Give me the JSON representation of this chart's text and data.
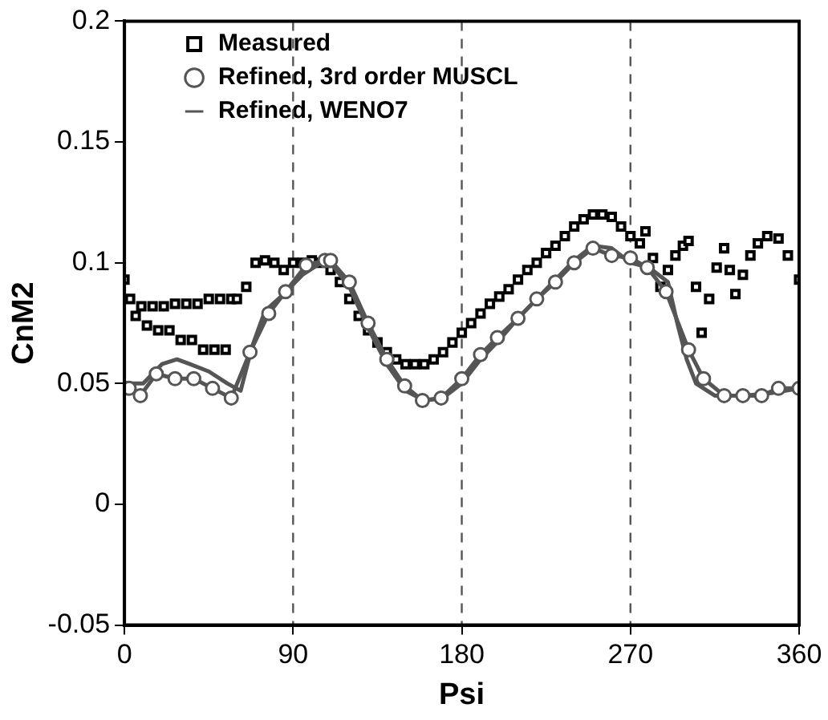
{
  "chart_data": {
    "type": "line",
    "xlabel": "Psi",
    "ylabel": "CnM2",
    "xlim": [
      0,
      360
    ],
    "xticks": [
      0,
      90,
      180,
      270,
      360
    ],
    "ylim": [
      -0.05,
      0.2
    ],
    "yticks": [
      -0.05,
      0,
      0.05,
      0.1,
      0.15,
      0.2
    ],
    "grid": false,
    "legend": "top",
    "line_style": "solid",
    "ref_lines": [
      {
        "axis": "x",
        "value": 90,
        "color": "#555555",
        "line_style": "dashed"
      },
      {
        "axis": "x",
        "value": 180,
        "color": "#555555",
        "line_style": "dashed"
      },
      {
        "axis": "x",
        "value": 270,
        "color": "#555555",
        "line_style": "dashed"
      }
    ],
    "series": [
      {
        "name": "Measured",
        "type": "scatter",
        "marker": "square",
        "color": "#000000",
        "x": [
          0,
          3,
          6,
          9,
          12,
          15,
          18,
          21,
          24,
          27,
          30,
          33,
          36,
          39,
          42,
          45,
          48,
          51,
          54,
          57,
          60,
          65,
          70,
          75,
          80,
          85,
          90,
          95,
          100,
          105,
          110,
          115,
          120,
          125,
          130,
          135,
          140,
          145,
          150,
          155,
          160,
          165,
          170,
          175,
          180,
          185,
          190,
          195,
          200,
          205,
          210,
          215,
          220,
          225,
          230,
          235,
          240,
          245,
          250,
          255,
          260,
          265,
          270,
          275,
          278,
          282,
          286,
          290,
          294,
          298,
          301,
          305,
          308,
          312,
          316,
          320,
          323,
          326,
          330,
          334,
          338,
          343,
          349,
          354,
          360
        ],
        "values": [
          0.093,
          0.085,
          0.078,
          0.082,
          0.074,
          0.082,
          0.072,
          0.082,
          0.072,
          0.083,
          0.068,
          0.083,
          0.068,
          0.083,
          0.064,
          0.085,
          0.064,
          0.085,
          0.064,
          0.085,
          0.085,
          0.09,
          0.1,
          0.101,
          0.1,
          0.097,
          0.1,
          0.1,
          0.101,
          0.1,
          0.097,
          0.092,
          0.085,
          0.078,
          0.072,
          0.067,
          0.063,
          0.06,
          0.058,
          0.058,
          0.058,
          0.06,
          0.063,
          0.067,
          0.071,
          0.075,
          0.079,
          0.083,
          0.086,
          0.089,
          0.093,
          0.097,
          0.1,
          0.104,
          0.107,
          0.111,
          0.115,
          0.118,
          0.12,
          0.12,
          0.119,
          0.115,
          0.111,
          0.108,
          0.113,
          0.102,
          0.09,
          0.097,
          0.103,
          0.107,
          0.109,
          0.09,
          0.071,
          0.085,
          0.098,
          0.106,
          0.097,
          0.087,
          0.095,
          0.103,
          0.108,
          0.111,
          0.11,
          0.103,
          0.093
        ]
      },
      {
        "name": "Refined, 3rd order MUSCL",
        "type": "line",
        "marker": "circle",
        "color": "#555555",
        "x": [
          0,
          2.5,
          8.5,
          17,
          27,
          37,
          47,
          57,
          67,
          77,
          86,
          97,
          107,
          110,
          120,
          130,
          140,
          149.5,
          159,
          169,
          180,
          190,
          199,
          210,
          220,
          230,
          240,
          250,
          260,
          270,
          279,
          289,
          301,
          309,
          320,
          330,
          340,
          349,
          360
        ],
        "values": [
          0.048,
          0.048,
          0.045,
          0.054,
          0.052,
          0.052,
          0.048,
          0.044,
          0.063,
          0.079,
          0.088,
          0.099,
          0.101,
          0.101,
          0.092,
          0.075,
          0.06,
          0.049,
          0.043,
          0.044,
          0.052,
          0.062,
          0.069,
          0.077,
          0.085,
          0.092,
          0.1,
          0.106,
          0.103,
          0.102,
          0.098,
          0.088,
          0.064,
          0.052,
          0.045,
          0.045,
          0.045,
          0.048,
          0.048
        ]
      },
      {
        "name": "Refined, WENO7",
        "type": "line",
        "marker": "none",
        "color": "#555555",
        "x": [
          0,
          10,
          20,
          28,
          35,
          45,
          55,
          62,
          68,
          75,
          85,
          95,
          105,
          110,
          120,
          130,
          140,
          150,
          160,
          170,
          180,
          190,
          200,
          210,
          220,
          230,
          240,
          250,
          260,
          270,
          280,
          290,
          295,
          300,
          305,
          315,
          330,
          345,
          360
        ],
        "values": [
          0.05,
          0.05,
          0.058,
          0.06,
          0.058,
          0.055,
          0.05,
          0.047,
          0.065,
          0.08,
          0.087,
          0.095,
          0.1,
          0.1,
          0.09,
          0.073,
          0.058,
          0.047,
          0.043,
          0.044,
          0.05,
          0.06,
          0.068,
          0.077,
          0.085,
          0.093,
          0.101,
          0.107,
          0.106,
          0.1,
          0.098,
          0.092,
          0.075,
          0.06,
          0.05,
          0.045,
          0.045,
          0.046,
          0.048
        ]
      }
    ]
  }
}
